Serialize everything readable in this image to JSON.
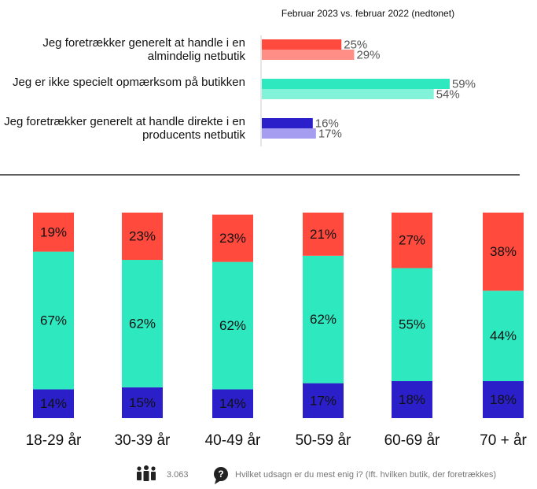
{
  "chart_data": [
    {
      "type": "hbar",
      "subtitle": "Februar 2023 vs. februar 2022 (nedtonet)",
      "categories": [
        "Jeg foretrækker generelt at handle i en almindelig netbutik",
        "Jeg er ikke specielt opmærksom på butikken",
        "Jeg foretrækker generelt at handle direkte i en producents netbutik"
      ],
      "series": [
        {
          "colors": [
            "#ff4a3d",
            "#2ee8c0",
            "#2a1fc9"
          ],
          "values": [
            25,
            59,
            16
          ],
          "value_labels": [
            "25%",
            "59%",
            "16%"
          ]
        },
        {
          "colors": [
            "#ff8f86",
            "#82f2d9",
            "#a59df0"
          ],
          "values": [
            29,
            54,
            17
          ],
          "value_labels": [
            "29%",
            "54%",
            "17%"
          ]
        }
      ]
    },
    {
      "type": "stacked-bar",
      "categories": [
        "18-29 år",
        "30-39 år",
        "40-49 år",
        "50-59 år",
        "60-69 år",
        "70 + år"
      ],
      "series": [
        {
          "color": "#2a1fc9",
          "values": [
            14,
            15,
            14,
            17,
            18,
            18
          ],
          "value_labels": [
            "14%",
            "15%",
            "14%",
            "17%",
            "18%",
            "18%"
          ]
        },
        {
          "color": "#2ee8c0",
          "values": [
            67,
            62,
            62,
            62,
            55,
            44
          ],
          "value_labels": [
            "67%",
            "62%",
            "62%",
            "62%",
            "55%",
            "44%"
          ]
        },
        {
          "color": "#ff4a3d",
          "values": [
            19,
            23,
            23,
            21,
            27,
            38
          ],
          "value_labels": [
            "19%",
            "23%",
            "23%",
            "21%",
            "27%",
            "38%"
          ]
        }
      ]
    }
  ],
  "footer": {
    "respondents": "3.063",
    "question": "Hvilket udsagn er du mest enig i? (Ift. hvilken butik, der foretrækkes)"
  }
}
